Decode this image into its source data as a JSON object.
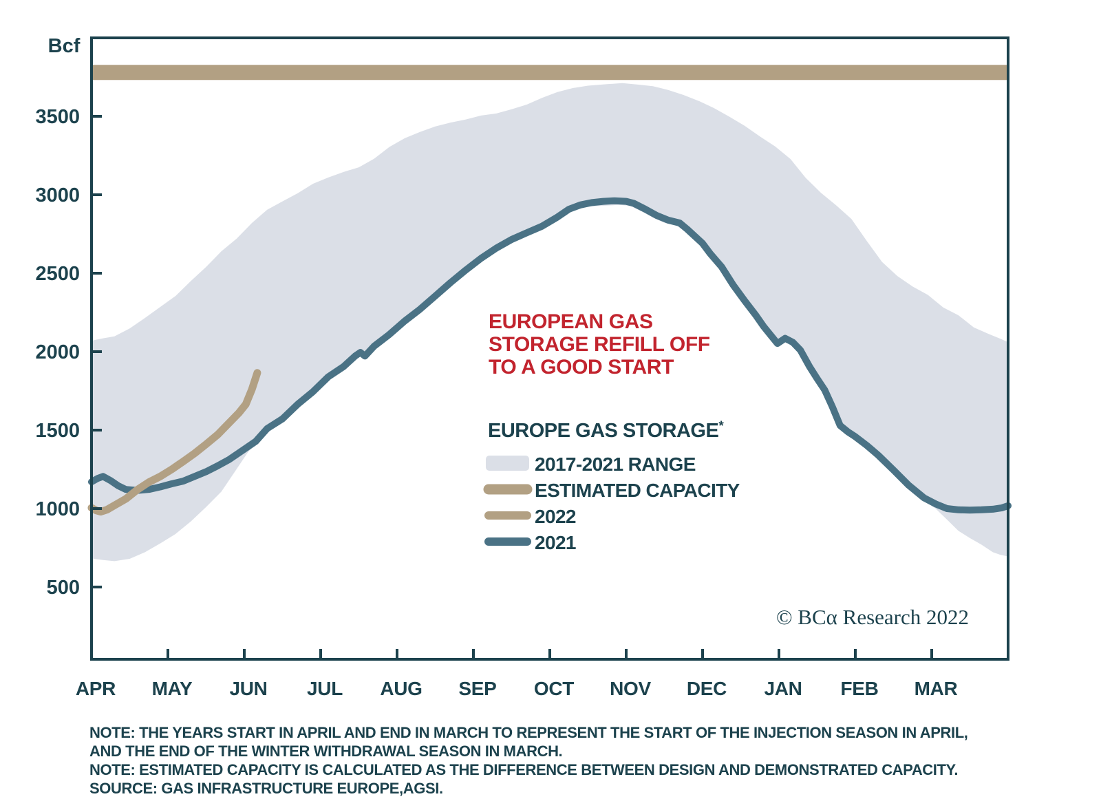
{
  "y_axis": {
    "title": "Bcf",
    "tick_labels": [
      "500",
      "1000",
      "1500",
      "2000",
      "2500",
      "3000",
      "3500"
    ]
  },
  "x_axis": {
    "labels": [
      "APR",
      "MAY",
      "JUN",
      "JUL",
      "AUG",
      "SEP",
      "OCT",
      "NOV",
      "DEC",
      "JAN",
      "FEB",
      "MAR"
    ]
  },
  "annotation": {
    "lines": [
      "EUROPEAN GAS",
      "STORAGE REFILL OFF",
      "TO A GOOD START"
    ],
    "color": "#c2242e"
  },
  "legend": {
    "title": "EUROPE GAS STORAGE",
    "title_sup": "*",
    "items": [
      {
        "label": "2017-2021 RANGE",
        "swatch": "band",
        "color": "#dbdfe7"
      },
      {
        "label": "ESTIMATED CAPACITY",
        "swatch": "thick-line",
        "color": "#b2a083"
      },
      {
        "label": "2022",
        "swatch": "line",
        "color": "#b2a083"
      },
      {
        "label": "2021",
        "swatch": "line",
        "color": "#4a7285"
      }
    ]
  },
  "watermark": "© BCα Research 2022",
  "notes": [
    "NOTE: THE YEARS START IN APRIL AND END IN MARCH TO REPRESENT THE START OF THE INJECTION SEASON IN APRIL,",
    "AND THE END OF THE WINTER WITHDRAWAL SEASON IN MARCH.",
    "NOTE: ESTIMATED CAPACITY IS CALCULATED AS THE DIFFERENCE BETWEEN DESIGN AND DEMONSTRATED CAPACITY.",
    "SOURCE: GAS INFRASTRUCTURE EUROPE,AGSI."
  ],
  "chart_data": {
    "type": "area",
    "title": "EUROPEAN GAS STORAGE REFILL OFF TO A GOOD START",
    "ylabel": "Bcf",
    "xlabel": "",
    "ylim": [
      0,
      4000
    ],
    "yticks": [
      500,
      1000,
      1500,
      2000,
      2500,
      3000,
      3500
    ],
    "grid": false,
    "legend_position": "center-right",
    "x_unit": "months since April 1 (0 = APR, 11 = MAR, values in Bcf)",
    "categories": [
      "APR",
      "MAY",
      "JUN",
      "JUL",
      "AUG",
      "SEP",
      "OCT",
      "NOV",
      "DEC",
      "JAN",
      "FEB",
      "MAR"
    ],
    "estimated_capacity_bcf": 3780,
    "series": [
      {
        "name": "2017-2021 RANGE",
        "type": "band",
        "color": "#dbdfe7",
        "upper": [
          [
            0,
            2070
          ],
          [
            0.15,
            2085
          ],
          [
            0.3,
            2098
          ],
          [
            0.5,
            2148
          ],
          [
            0.7,
            2215
          ],
          [
            0.9,
            2285
          ],
          [
            1.1,
            2355
          ],
          [
            1.3,
            2450
          ],
          [
            1.5,
            2540
          ],
          [
            1.7,
            2640
          ],
          [
            1.9,
            2720
          ],
          [
            2.1,
            2820
          ],
          [
            2.3,
            2905
          ],
          [
            2.5,
            2958
          ],
          [
            2.7,
            3010
          ],
          [
            2.9,
            3070
          ],
          [
            3.1,
            3110
          ],
          [
            3.3,
            3145
          ],
          [
            3.5,
            3175
          ],
          [
            3.7,
            3230
          ],
          [
            3.9,
            3305
          ],
          [
            4.1,
            3360
          ],
          [
            4.3,
            3400
          ],
          [
            4.5,
            3435
          ],
          [
            4.7,
            3460
          ],
          [
            4.9,
            3480
          ],
          [
            5.1,
            3505
          ],
          [
            5.3,
            3518
          ],
          [
            5.5,
            3545
          ],
          [
            5.7,
            3575
          ],
          [
            5.9,
            3618
          ],
          [
            6.1,
            3655
          ],
          [
            6.3,
            3680
          ],
          [
            6.5,
            3695
          ],
          [
            6.75,
            3705
          ],
          [
            6.95,
            3712
          ],
          [
            7.15,
            3702
          ],
          [
            7.35,
            3692
          ],
          [
            7.55,
            3668
          ],
          [
            7.75,
            3636
          ],
          [
            7.95,
            3598
          ],
          [
            8.15,
            3552
          ],
          [
            8.35,
            3498
          ],
          [
            8.55,
            3440
          ],
          [
            8.75,
            3372
          ],
          [
            8.95,
            3308
          ],
          [
            9.15,
            3228
          ],
          [
            9.35,
            3108
          ],
          [
            9.55,
            3012
          ],
          [
            9.75,
            2932
          ],
          [
            9.95,
            2845
          ],
          [
            10.15,
            2705
          ],
          [
            10.35,
            2572
          ],
          [
            10.55,
            2482
          ],
          [
            10.75,
            2415
          ],
          [
            10.95,
            2362
          ],
          [
            11.15,
            2282
          ],
          [
            11.35,
            2232
          ],
          [
            11.55,
            2155
          ],
          [
            11.75,
            2112
          ],
          [
            11.9,
            2082
          ],
          [
            12,
            2060
          ]
        ],
        "lower": [
          [
            0,
            682
          ],
          [
            0.15,
            672
          ],
          [
            0.3,
            665
          ],
          [
            0.5,
            680
          ],
          [
            0.7,
            722
          ],
          [
            0.9,
            778
          ],
          [
            1.1,
            838
          ],
          [
            1.3,
            918
          ],
          [
            1.5,
            1010
          ],
          [
            1.7,
            1108
          ],
          [
            1.9,
            1252
          ],
          [
            2.05,
            1360
          ],
          [
            2.2,
            1440
          ],
          [
            2.4,
            1520
          ],
          [
            2.6,
            1612
          ],
          [
            2.8,
            1695
          ],
          [
            3,
            1772
          ],
          [
            3.2,
            1858
          ],
          [
            3.4,
            1935
          ],
          [
            3.55,
            1978
          ],
          [
            3.7,
            2018
          ],
          [
            3.9,
            2092
          ],
          [
            4.1,
            2178
          ],
          [
            4.3,
            2252
          ],
          [
            4.5,
            2338
          ],
          [
            4.7,
            2422
          ],
          [
            4.9,
            2502
          ],
          [
            5.1,
            2578
          ],
          [
            5.3,
            2642
          ],
          [
            5.5,
            2698
          ],
          [
            5.7,
            2740
          ],
          [
            5.9,
            2782
          ],
          [
            6.1,
            2840
          ],
          [
            6.3,
            2898
          ],
          [
            6.5,
            2925
          ],
          [
            6.7,
            2930
          ],
          [
            6.9,
            2935
          ],
          [
            7.05,
            2930
          ],
          [
            7.2,
            2895
          ],
          [
            7.35,
            2855
          ],
          [
            7.5,
            2822
          ],
          [
            7.65,
            2805
          ],
          [
            7.8,
            2765
          ],
          [
            7.95,
            2712
          ],
          [
            8.1,
            2610
          ],
          [
            8.25,
            2522
          ],
          [
            8.4,
            2408
          ],
          [
            8.55,
            2308
          ],
          [
            8.7,
            2212
          ],
          [
            8.85,
            2125
          ],
          [
            8.98,
            2035
          ],
          [
            9.08,
            2068
          ],
          [
            9.18,
            2042
          ],
          [
            9.28,
            1992
          ],
          [
            9.4,
            1888
          ],
          [
            9.55,
            1795
          ],
          [
            9.7,
            1630
          ],
          [
            9.85,
            1495
          ],
          [
            10,
            1440
          ],
          [
            10.15,
            1385
          ],
          [
            10.3,
            1322
          ],
          [
            10.5,
            1228
          ],
          [
            10.7,
            1130
          ],
          [
            10.9,
            1050
          ],
          [
            11.05,
            1000
          ],
          [
            11.2,
            930
          ],
          [
            11.35,
            858
          ],
          [
            11.5,
            812
          ],
          [
            11.65,
            770
          ],
          [
            11.8,
            722
          ],
          [
            11.9,
            705
          ],
          [
            12,
            695
          ]
        ]
      },
      {
        "name": "ESTIMATED CAPACITY",
        "type": "hline",
        "color": "#b2a083",
        "value": 3780
      },
      {
        "name": "2022",
        "type": "line",
        "color": "#b2a083",
        "points": [
          [
            0,
            1005
          ],
          [
            0.06,
            988
          ],
          [
            0.12,
            980
          ],
          [
            0.2,
            992
          ],
          [
            0.3,
            1020
          ],
          [
            0.45,
            1062
          ],
          [
            0.6,
            1120
          ],
          [
            0.75,
            1168
          ],
          [
            0.9,
            1205
          ],
          [
            1.05,
            1250
          ],
          [
            1.2,
            1300
          ],
          [
            1.35,
            1352
          ],
          [
            1.5,
            1410
          ],
          [
            1.65,
            1470
          ],
          [
            1.8,
            1545
          ],
          [
            1.93,
            1610
          ],
          [
            2.02,
            1665
          ],
          [
            2.1,
            1760
          ],
          [
            2.17,
            1865
          ]
        ]
      },
      {
        "name": "2021",
        "type": "line",
        "color": "#4a7285",
        "points": [
          [
            0,
            1170
          ],
          [
            0.08,
            1192
          ],
          [
            0.15,
            1205
          ],
          [
            0.25,
            1178
          ],
          [
            0.35,
            1145
          ],
          [
            0.45,
            1122
          ],
          [
            0.6,
            1116
          ],
          [
            0.75,
            1122
          ],
          [
            0.9,
            1138
          ],
          [
            1.05,
            1158
          ],
          [
            1.2,
            1175
          ],
          [
            1.35,
            1205
          ],
          [
            1.5,
            1235
          ],
          [
            1.65,
            1272
          ],
          [
            1.8,
            1312
          ],
          [
            2,
            1378
          ],
          [
            2.15,
            1428
          ],
          [
            2.3,
            1510
          ],
          [
            2.5,
            1572
          ],
          [
            2.7,
            1665
          ],
          [
            2.9,
            1745
          ],
          [
            3.1,
            1840
          ],
          [
            3.3,
            1905
          ],
          [
            3.45,
            1972
          ],
          [
            3.52,
            1995
          ],
          [
            3.58,
            1972
          ],
          [
            3.7,
            2035
          ],
          [
            3.9,
            2110
          ],
          [
            4.1,
            2195
          ],
          [
            4.3,
            2270
          ],
          [
            4.5,
            2355
          ],
          [
            4.7,
            2440
          ],
          [
            4.9,
            2520
          ],
          [
            5.1,
            2595
          ],
          [
            5.3,
            2660
          ],
          [
            5.5,
            2715
          ],
          [
            5.7,
            2758
          ],
          [
            5.9,
            2800
          ],
          [
            6.1,
            2858
          ],
          [
            6.25,
            2908
          ],
          [
            6.4,
            2935
          ],
          [
            6.55,
            2950
          ],
          [
            6.7,
            2958
          ],
          [
            6.85,
            2962
          ],
          [
            7,
            2958
          ],
          [
            7.1,
            2945
          ],
          [
            7.25,
            2908
          ],
          [
            7.4,
            2868
          ],
          [
            7.55,
            2838
          ],
          [
            7.7,
            2820
          ],
          [
            7.8,
            2780
          ],
          [
            7.9,
            2735
          ],
          [
            8,
            2690
          ],
          [
            8.1,
            2625
          ],
          [
            8.25,
            2540
          ],
          [
            8.4,
            2425
          ],
          [
            8.55,
            2325
          ],
          [
            8.7,
            2230
          ],
          [
            8.8,
            2160
          ],
          [
            8.9,
            2100
          ],
          [
            8.98,
            2052
          ],
          [
            9.08,
            2085
          ],
          [
            9.18,
            2060
          ],
          [
            9.28,
            2010
          ],
          [
            9.4,
            1905
          ],
          [
            9.5,
            1828
          ],
          [
            9.6,
            1755
          ],
          [
            9.7,
            1648
          ],
          [
            9.8,
            1530
          ],
          [
            9.9,
            1490
          ],
          [
            10,
            1458
          ],
          [
            10.15,
            1402
          ],
          [
            10.3,
            1340
          ],
          [
            10.5,
            1245
          ],
          [
            10.7,
            1148
          ],
          [
            10.9,
            1068
          ],
          [
            11.05,
            1030
          ],
          [
            11.2,
            1000
          ],
          [
            11.35,
            992
          ],
          [
            11.5,
            990
          ],
          [
            11.65,
            992
          ],
          [
            11.8,
            996
          ],
          [
            11.92,
            1005
          ],
          [
            12,
            1018
          ]
        ]
      }
    ]
  }
}
